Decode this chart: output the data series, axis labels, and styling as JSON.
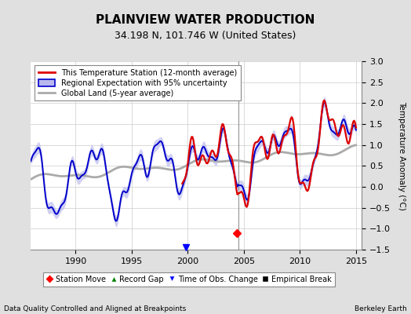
{
  "title": "PLAINVIEW WATER PRODUCTION",
  "subtitle": "34.198 N, 101.746 W (United States)",
  "ylabel": "Temperature Anomaly (°C)",
  "xlabel_left": "Data Quality Controlled and Aligned at Breakpoints",
  "xlabel_right": "Berkeley Earth",
  "ylim": [
    -1.5,
    3.0
  ],
  "xlim": [
    1986.0,
    2015.5
  ],
  "yticks": [
    -1.5,
    -1.0,
    -0.5,
    0.0,
    0.5,
    1.0,
    1.5,
    2.0,
    2.5,
    3.0
  ],
  "xticks": [
    1990,
    1995,
    2000,
    2005,
    2010,
    2015
  ],
  "bg_color": "#e0e0e0",
  "plot_bg_color": "#ffffff",
  "vertical_line_x": 2004.5,
  "station_move_x": 2004.35,
  "station_move_y": -1.1,
  "time_obs_change_x": 1999.8,
  "time_obs_change_y": -1.45,
  "legend1_labels": [
    "This Temperature Station (12-month average)",
    "Regional Expectation with 95% uncertainty",
    "Global Land (5-year average)"
  ],
  "legend2_labels": [
    "Station Move",
    "Record Gap",
    "Time of Obs. Change",
    "Empirical Break"
  ],
  "red_line_color": "#dd0000",
  "blue_line_color": "#0000cc",
  "blue_fill_color": "#b8b8ee",
  "gray_line_color": "#aaaaaa",
  "title_fontsize": 11,
  "subtitle_fontsize": 9,
  "tick_fontsize": 8,
  "label_fontsize": 7.5
}
